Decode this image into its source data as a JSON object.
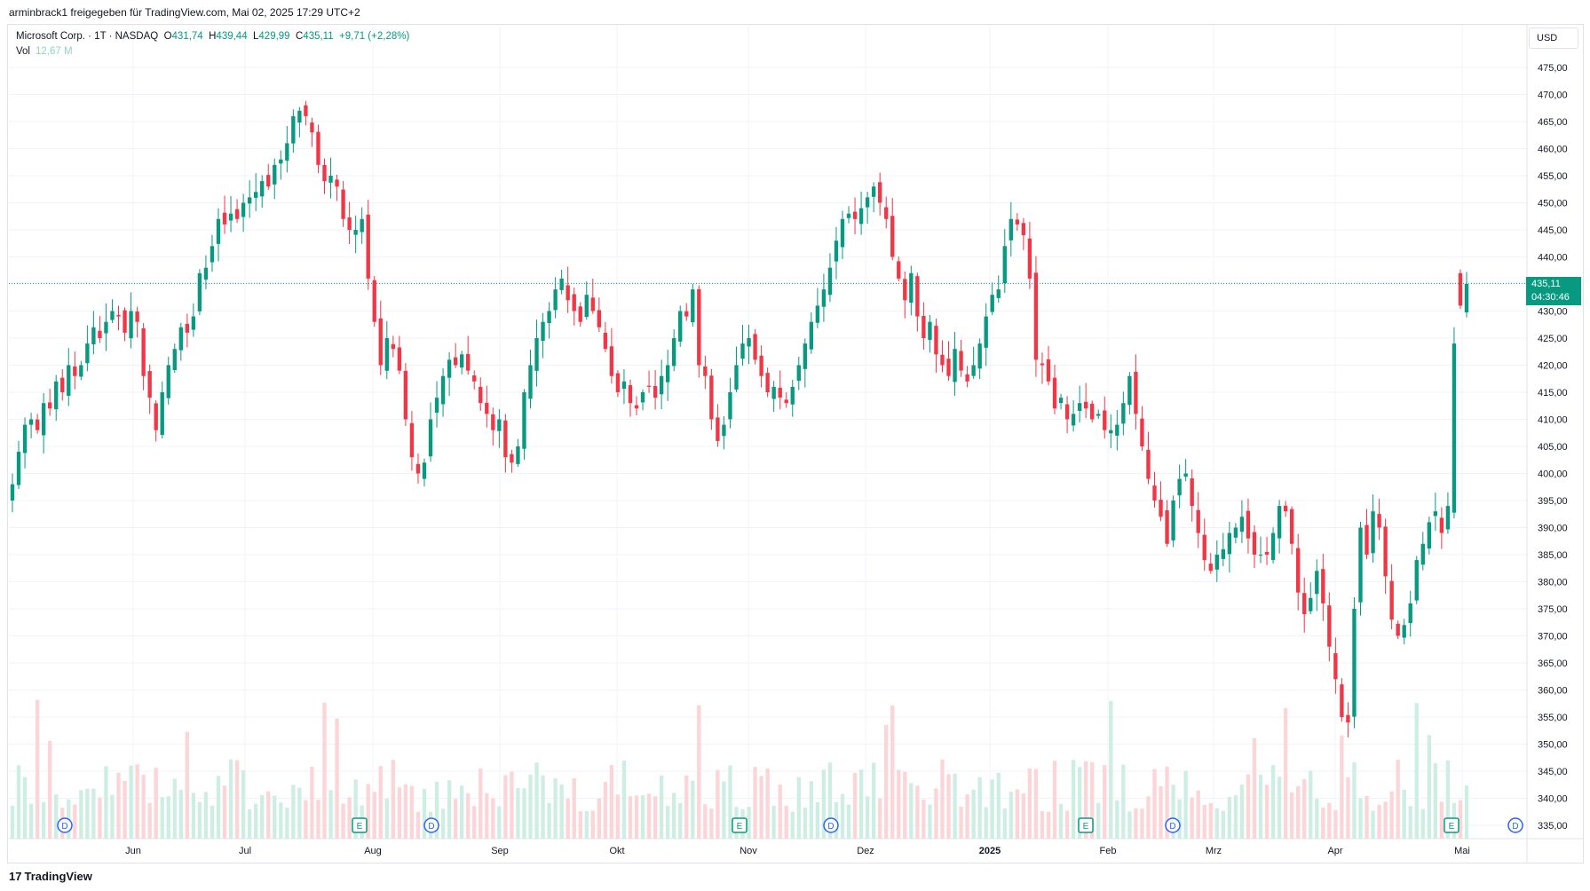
{
  "header": {
    "caption": "arminbrack1 freigegeben für TradingView.com, Mai 02, 2025 17:29 UTC+2"
  },
  "legend": {
    "symbol": "Microsoft Corp. · 1T · NASDAQ",
    "o_label": "O",
    "o": "431,74",
    "h_label": "H",
    "h": "439,44",
    "l_label": "L",
    "l": "429,99",
    "c_label": "C",
    "c": "435,11",
    "change": "+9,71 (+2,28%)",
    "vol_label": "Vol",
    "vol": "12,67 M"
  },
  "currency": "USD",
  "last_price": {
    "price": "435,11",
    "countdown": "04:30:46"
  },
  "footer": {
    "brand": "TradingView",
    "logo": "17"
  },
  "colors": {
    "up": "#089981",
    "down": "#f23645",
    "vol_up": "#cfeee3",
    "vol_down": "#fcd5d8",
    "grid": "#f0f3fa"
  },
  "chart_data": {
    "type": "candlestick",
    "y_axis": {
      "ylim": [
        333,
        478
      ],
      "ticks": [
        "335,00",
        "340,00",
        "345,00",
        "350,00",
        "355,00",
        "360,00",
        "365,00",
        "370,00",
        "375,00",
        "380,00",
        "385,00",
        "390,00",
        "395,00",
        "400,00",
        "405,00",
        "410,00",
        "415,00",
        "420,00",
        "425,00",
        "430,00",
        "435,00",
        "440,00",
        "445,00",
        "450,00",
        "455,00",
        "460,00",
        "465,00",
        "470,00",
        "475,00"
      ]
    },
    "x_axis": {
      "ticks": [
        "Jun",
        "Jul",
        "Aug",
        "Sep",
        "Okt",
        "Nov",
        "Dez",
        "2025",
        "Feb",
        "Mrz",
        "Apr",
        "Mai"
      ],
      "bold": [
        "2025"
      ]
    },
    "closes": [
      398,
      404,
      409,
      410,
      408,
      413,
      412,
      417,
      415,
      420,
      418,
      420,
      424,
      427,
      425,
      428,
      430,
      429,
      426,
      430,
      428,
      418,
      414,
      408,
      415,
      420,
      423,
      427,
      426,
      429,
      437,
      438,
      442,
      447,
      446,
      448,
      447,
      450,
      451,
      452,
      454,
      453,
      457,
      458,
      461,
      466,
      467,
      466,
      463,
      457,
      454,
      455,
      453,
      447,
      445,
      445,
      447,
      436,
      428,
      420,
      425,
      423,
      419,
      410,
      403,
      400,
      402,
      410,
      414,
      418,
      421,
      420,
      422,
      419,
      417,
      413,
      411,
      408,
      410,
      403,
      402,
      405,
      415,
      420,
      425,
      428,
      430,
      434,
      436,
      432,
      430,
      428,
      433,
      430,
      427,
      423,
      418,
      415,
      417,
      413,
      412,
      415,
      416,
      414,
      418,
      420,
      425,
      430,
      429,
      434,
      420,
      418,
      410,
      406,
      409,
      415,
      420,
      424,
      425,
      421,
      418,
      415,
      416,
      414,
      413,
      416,
      420,
      424,
      428,
      431,
      434,
      438,
      443,
      447,
      448,
      447,
      449,
      451,
      453,
      450,
      447,
      440,
      436,
      432,
      437,
      429,
      425,
      428,
      422,
      420,
      418,
      423,
      419,
      417,
      420,
      424,
      429,
      433,
      434,
      442,
      447,
      446,
      444,
      436,
      421,
      420,
      417,
      412,
      414,
      410,
      411,
      413,
      412,
      410,
      411,
      408,
      408,
      409,
      413,
      418,
      411,
      405,
      399,
      395,
      392,
      387,
      395,
      399,
      400,
      394,
      389,
      384,
      382,
      385,
      386,
      389,
      390,
      392,
      388,
      385,
      385,
      385,
      389,
      394,
      393,
      387,
      378,
      374,
      377,
      382,
      376,
      368,
      362,
      355,
      354,
      375,
      390,
      385,
      393,
      390,
      381,
      373,
      370,
      372,
      376,
      384,
      387,
      391,
      393,
      389,
      394,
      424,
      431,
      435
    ],
    "events": [
      {
        "type": "D",
        "label": "D"
      },
      {
        "type": "E",
        "label": "E"
      },
      {
        "type": "D",
        "label": "D"
      },
      {
        "type": "E",
        "label": "E"
      },
      {
        "type": "D",
        "label": "D"
      },
      {
        "type": "E",
        "label": "E"
      },
      {
        "type": "D",
        "label": "D"
      },
      {
        "type": "E",
        "label": "E"
      },
      {
        "type": "D",
        "label": "D"
      }
    ]
  }
}
